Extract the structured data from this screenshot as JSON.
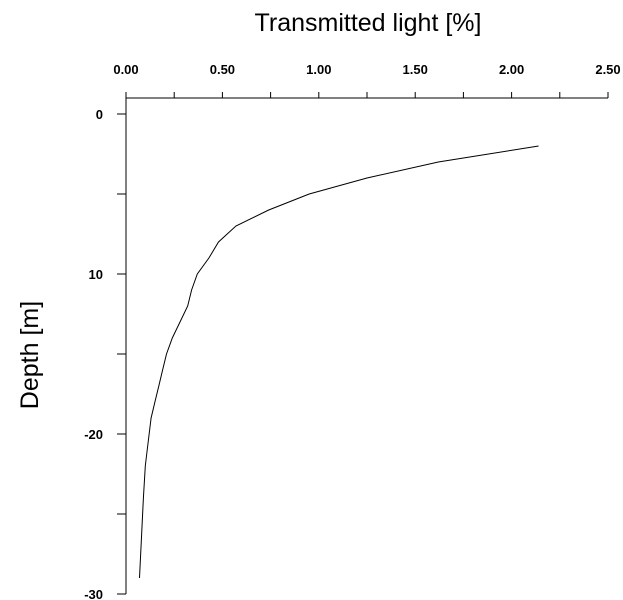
{
  "chart_data": {
    "type": "line",
    "xlabel": "Transmitted light [%]",
    "ylabel": "Depth [m]",
    "x_axis_position": "top",
    "xlim": [
      0,
      2.5
    ],
    "ylim": [
      0,
      -30
    ],
    "grid": false,
    "x_ticks": [
      {
        "value": 0.0,
        "label": "0.00"
      },
      {
        "value": 0.5,
        "label": "0.50"
      },
      {
        "value": 1.0,
        "label": "1.00"
      },
      {
        "value": 1.5,
        "label": "1.50"
      },
      {
        "value": 2.0,
        "label": "2.00"
      },
      {
        "value": 2.5,
        "label": "2.50"
      }
    ],
    "x_minor_ticks": [
      0.25,
      0.75,
      1.25,
      1.75,
      2.25
    ],
    "y_ticks": [
      {
        "value": 0,
        "label": "0"
      },
      {
        "value": -10,
        "label": "10"
      },
      {
        "value": -20,
        "label": "-20"
      },
      {
        "value": -30,
        "label": "-30"
      }
    ],
    "y_minor_ticks": [
      -5,
      -15,
      -25
    ],
    "series": [
      {
        "x": [
          2.14,
          1.62,
          1.25,
          0.95,
          0.74,
          0.57,
          0.48,
          0.43,
          0.37,
          0.34,
          0.32,
          0.28,
          0.24,
          0.21,
          0.19,
          0.17,
          0.15,
          0.13,
          0.11,
          0.1,
          0.09,
          0.07
        ],
        "y": [
          -2,
          -3,
          -4,
          -5,
          -6,
          -7,
          -8,
          -9,
          -10,
          -11,
          -12,
          -13,
          -14,
          -15,
          -16,
          -17,
          -18,
          -19,
          -21,
          -22,
          -24,
          -29
        ]
      }
    ]
  }
}
